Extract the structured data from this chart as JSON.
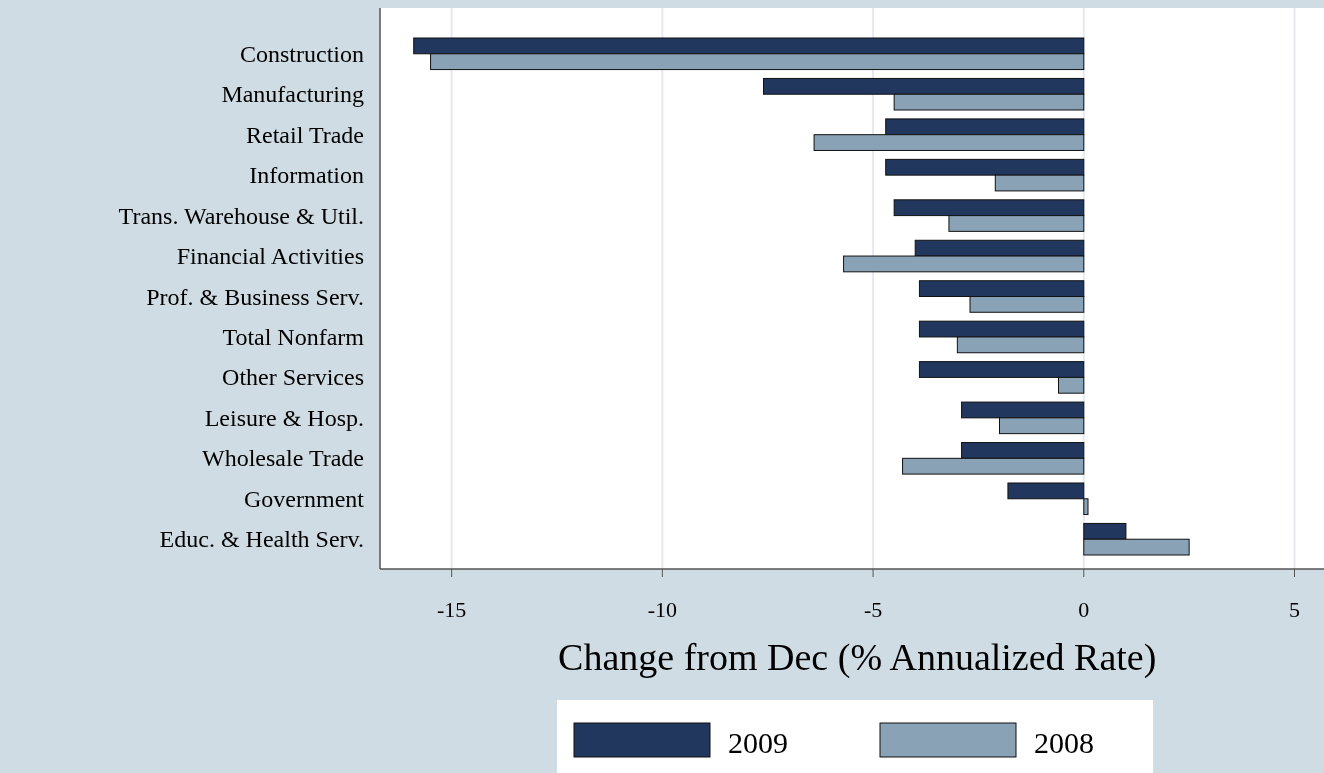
{
  "chart_data": {
    "type": "bar",
    "orientation": "horizontal",
    "categories": [
      "Construction",
      "Manufacturing",
      "Retail Trade",
      "Information",
      "Trans. Warehouse & Util.",
      "Financial Activities",
      "Prof. & Business Serv.",
      "Total Nonfarm",
      "Other Services",
      "Leisure & Hosp.",
      "Wholesale Trade",
      "Government",
      "Educ. & Health Serv."
    ],
    "series": [
      {
        "name": "2009",
        "color": "#22375e",
        "values": [
          -15.9,
          -7.6,
          -4.7,
          -4.7,
          -4.5,
          -4.0,
          -3.9,
          -3.9,
          -3.9,
          -2.9,
          -2.9,
          -1.8,
          1.0
        ]
      },
      {
        "name": "2008",
        "color": "#8aa2b6",
        "values": [
          -15.5,
          -4.5,
          -6.4,
          -2.1,
          -3.2,
          -5.7,
          -2.7,
          -3.0,
          -0.6,
          -2.0,
          -4.3,
          0.1,
          2.5
        ]
      }
    ],
    "xlim": [
      -16.7,
      5.7
    ],
    "xticks": [
      -15,
      -10,
      -5,
      0,
      5
    ],
    "xlabel": "Change from Dec (% Annualized Rate)",
    "grid": "x",
    "legend": "bottom"
  }
}
